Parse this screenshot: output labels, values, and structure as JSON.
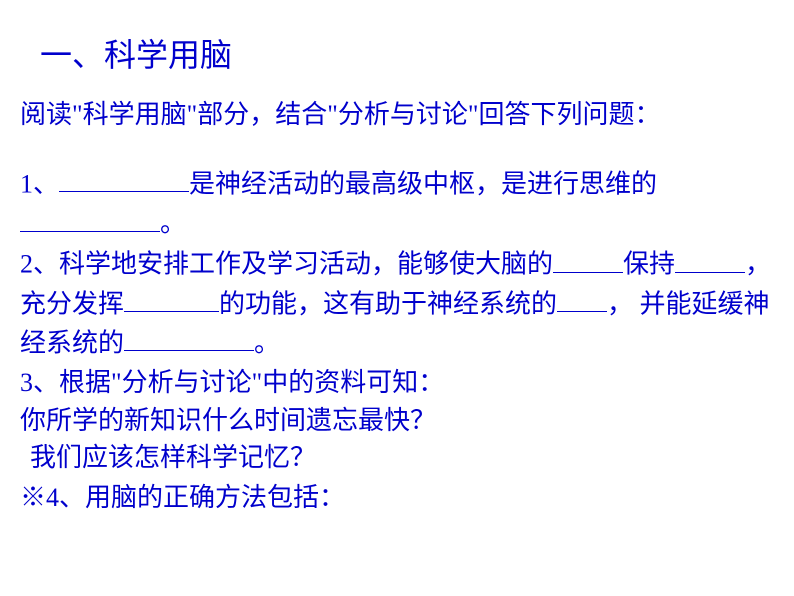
{
  "title": "一、科学用脑",
  "intro": "阅读\"科学用脑\"部分，结合\"分析与讨论\"回答下列问题：",
  "q1_part1": "1、",
  "q1_part2": "是神经活动的最高级中枢，是进行思维的",
  "q1_part3": "。",
  "q2_part1": "2、科学地安排工作及学习活动，能够使大脑的",
  "q2_part2": "保持",
  "q2_part3": "，充分发挥",
  "q2_part4": "的功能，这有助于神经系统的",
  "q2_part5": "， 并能延缓神经系统的",
  "q2_part6": "。",
  "q3_part1": "3、根据\"分析与讨论\"中的资料可知：",
  "q3_part2": "你所学的新知识什么时间遗忘最快？",
  "q3_part3": "我们应该怎样科学记忆？",
  "q4": "※4、用脑的正确方法包括：",
  "colors": {
    "text": "#0000cc",
    "background": "#ffffff",
    "underline": "#0000cc"
  },
  "typography": {
    "title_fontsize": 32,
    "content_fontsize": 26,
    "font_family": "SimSun"
  }
}
